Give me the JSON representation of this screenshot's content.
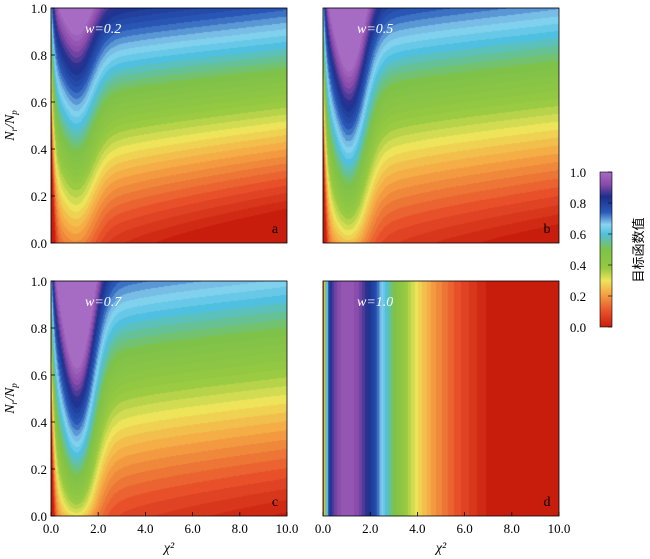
{
  "figure": {
    "colorbar": {
      "label": "目标函数值",
      "ticks": [
        "1.0",
        "0.8",
        "0.6",
        "0.4",
        "0.2",
        "0.0"
      ],
      "range": [
        0.0,
        1.0
      ],
      "colormap": [
        "#c81d0c",
        "#e8502a",
        "#f5a945",
        "#ede45a",
        "#96c940",
        "#7ec24a",
        "#4fc0e0",
        "#8ad4f0",
        "#2a5aba",
        "#1d2e8c",
        "#8a4aaa",
        "#a66bc2"
      ]
    }
  },
  "chart_data": [
    {
      "type": "heatmap",
      "panel_letter": "a",
      "annotation": "w=0.2",
      "w": 0.2,
      "xlabel": "",
      "ylabel": "Nr/Np",
      "xlim": [
        0.0,
        10.0
      ],
      "ylim": [
        0.0,
        1.0
      ],
      "x_ticks": [],
      "y_ticks": [
        "0.0",
        "0.2",
        "0.4",
        "0.6",
        "0.8",
        "1.0"
      ],
      "model": "objective value as function of chi^2 (x) and Nr/Np (y), weighted by w"
    },
    {
      "type": "heatmap",
      "panel_letter": "b",
      "annotation": "w=0.5",
      "w": 0.5,
      "xlabel": "",
      "ylabel": "",
      "xlim": [
        0.0,
        10.0
      ],
      "ylim": [
        0.0,
        1.0
      ],
      "x_ticks": [],
      "y_ticks": []
    },
    {
      "type": "heatmap",
      "panel_letter": "c",
      "annotation": "w=0.7",
      "w": 0.7,
      "xlabel": "χ²",
      "ylabel": "Nr/Np",
      "xlim": [
        0.0,
        10.0
      ],
      "ylim": [
        0.0,
        1.0
      ],
      "x_ticks": [
        "0.0",
        "2.0",
        "4.0",
        "6.0",
        "8.0",
        "10.0"
      ],
      "y_ticks": [
        "0.0",
        "0.2",
        "0.4",
        "0.6",
        "0.8",
        "1.0"
      ]
    },
    {
      "type": "heatmap",
      "panel_letter": "d",
      "annotation": "w=1.0",
      "w": 1.0,
      "xlabel": "χ²",
      "ylabel": "",
      "xlim": [
        0.0,
        10.0
      ],
      "ylim": [
        0.0,
        1.0
      ],
      "x_ticks": [
        "0.0",
        "2.0",
        "4.0",
        "6.0",
        "8.0",
        "10.0"
      ],
      "y_ticks": []
    }
  ]
}
